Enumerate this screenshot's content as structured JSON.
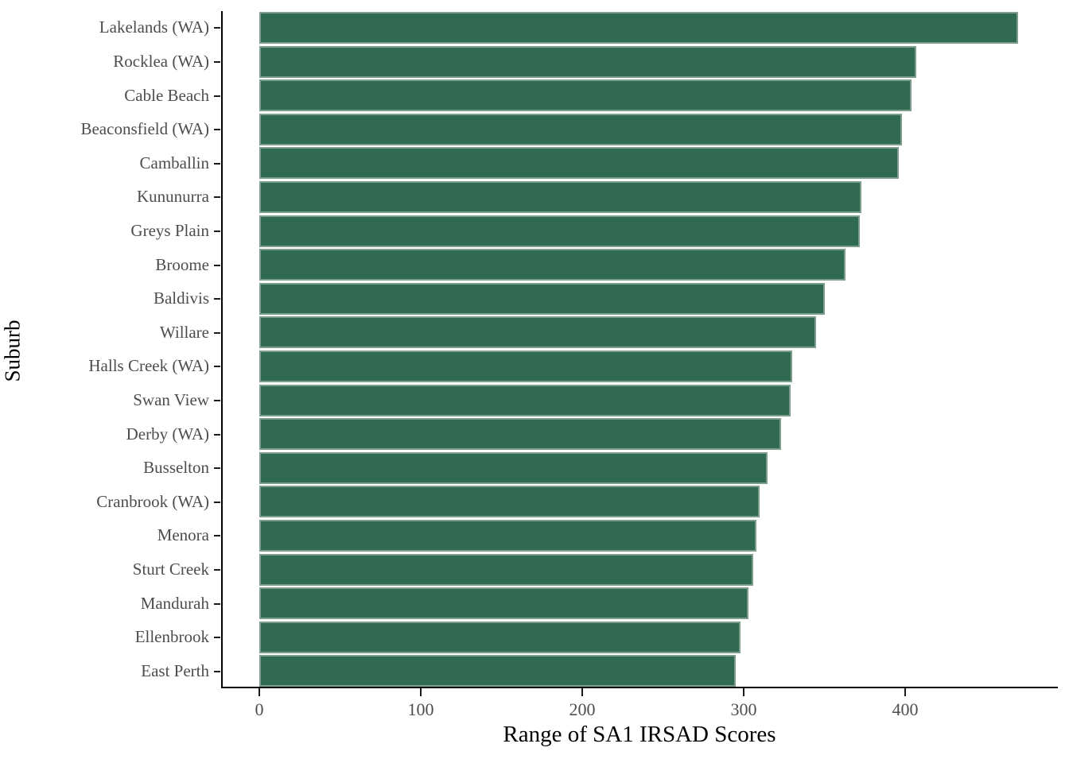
{
  "chart_data": {
    "type": "bar",
    "orientation": "horizontal",
    "title": "",
    "xlabel": "Range of SA1 IRSAD Scores",
    "ylabel": "Suburb",
    "categories": [
      "Lakelands (WA)",
      "Rocklea (WA)",
      "Cable Beach",
      "Beaconsfield (WA)",
      "Camballin",
      "Kununurra",
      "Greys Plain",
      "Broome",
      "Baldivis",
      "Willare",
      "Halls Creek (WA)",
      "Swan View",
      "Derby (WA)",
      "Busselton",
      "Cranbrook (WA)",
      "Menora",
      "Sturt Creek",
      "Mandurah",
      "Ellenbrook",
      "East Perth"
    ],
    "values": [
      470,
      407,
      404,
      398,
      396,
      373,
      372,
      363,
      350,
      345,
      330,
      329,
      323,
      315,
      310,
      308,
      306,
      303,
      298,
      295
    ],
    "x_ticks": [
      0,
      100,
      200,
      300,
      400
    ],
    "xlim": [
      0,
      495
    ],
    "grid": false,
    "legend": false,
    "colors": {
      "bar_fill": "#306a52",
      "bar_border": "#7d9d8d",
      "axis_line": "#000000",
      "tick_label": "#4d4d4d",
      "axis_title": "#000000",
      "background": "#ffffff"
    }
  }
}
